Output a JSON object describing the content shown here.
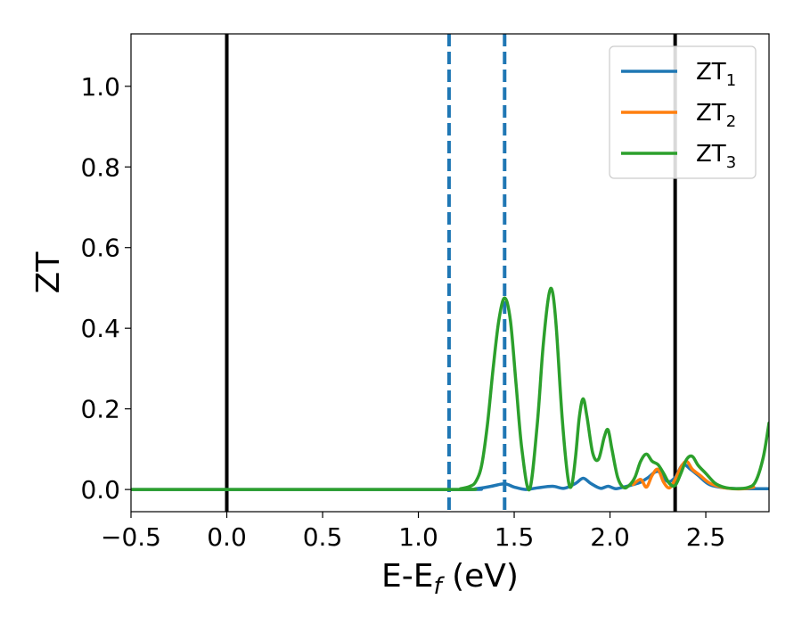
{
  "chart_data": {
    "type": "line",
    "xlabel_main": "E-E",
    "xlabel_sub": "f",
    "xlabel_unit": " (eV)",
    "ylabel": "ZT",
    "xlim": [
      -0.5,
      2.83
    ],
    "ylim": [
      -0.055,
      1.13
    ],
    "xticks": [
      -0.5,
      0.0,
      0.5,
      1.0,
      1.5,
      2.0,
      2.5
    ],
    "xtick_labels": [
      "−0.5",
      "0.0",
      "0.5",
      "1.0",
      "1.5",
      "2.0",
      "2.5"
    ],
    "yticks": [
      0.0,
      0.2,
      0.4,
      0.6,
      0.8,
      1.0
    ],
    "ytick_labels": [
      "0.0",
      "0.2",
      "0.4",
      "0.6",
      "0.8",
      "1.0"
    ],
    "grid": false,
    "legend_position": "top-right",
    "vlines_solid": [
      0.0,
      2.34
    ],
    "vlines_dashed": [
      1.16,
      1.45
    ],
    "colors": {
      "ZT1": "#1f77b4",
      "ZT2": "#ff7f0e",
      "ZT3": "#2ca02c",
      "solid_vline": "#000000",
      "dashed_vline": "#1f77b4"
    },
    "series": [
      {
        "name": "ZT",
        "sub": "1",
        "color_key": "ZT1",
        "x": [
          -0.5,
          1.16,
          1.3,
          1.38,
          1.45,
          1.5,
          1.56,
          1.62,
          1.7,
          1.76,
          1.82,
          1.86,
          1.9,
          1.95,
          1.99,
          2.03,
          2.08,
          2.12,
          2.16,
          2.2,
          2.25,
          2.3,
          2.34,
          2.38,
          2.42,
          2.46,
          2.52,
          2.6,
          2.7,
          2.83
        ],
        "y": [
          0.0,
          0.0,
          0.002,
          0.008,
          0.014,
          0.006,
          0.0,
          0.004,
          0.008,
          0.003,
          0.015,
          0.028,
          0.015,
          0.003,
          0.008,
          0.002,
          0.007,
          0.012,
          0.018,
          0.03,
          0.045,
          0.02,
          0.03,
          0.062,
          0.05,
          0.035,
          0.012,
          0.004,
          0.002,
          0.002
        ]
      },
      {
        "name": "ZT",
        "sub": "2",
        "color_key": "ZT2",
        "x": [
          2.12,
          2.16,
          2.19,
          2.22,
          2.25,
          2.28,
          2.31,
          2.34,
          2.37,
          2.4,
          2.43,
          2.47,
          2.52,
          2.58,
          2.64,
          2.7,
          2.75
        ],
        "y": [
          0.012,
          0.025,
          0.006,
          0.035,
          0.05,
          0.018,
          0.004,
          0.025,
          0.055,
          0.07,
          0.05,
          0.035,
          0.016,
          0.006,
          0.002,
          0.002,
          0.006
        ]
      },
      {
        "name": "ZT",
        "sub": "3",
        "color_key": "ZT3",
        "x": [
          -0.5,
          1.16,
          1.22,
          1.27,
          1.3,
          1.33,
          1.36,
          1.39,
          1.42,
          1.45,
          1.48,
          1.51,
          1.54,
          1.58,
          1.62,
          1.65,
          1.68,
          1.7,
          1.72,
          1.75,
          1.78,
          1.8,
          1.82,
          1.84,
          1.86,
          1.88,
          1.91,
          1.94,
          1.97,
          1.99,
          2.01,
          2.04,
          2.07,
          2.1,
          2.13,
          2.16,
          2.19,
          2.22,
          2.25,
          2.28,
          2.31,
          2.34,
          2.37,
          2.4,
          2.43,
          2.46,
          2.5,
          2.55,
          2.6,
          2.66,
          2.72,
          2.76,
          2.8,
          2.83
        ],
        "y": [
          0.0,
          0.0,
          0.002,
          0.008,
          0.02,
          0.06,
          0.16,
          0.3,
          0.42,
          0.475,
          0.42,
          0.26,
          0.1,
          0.0,
          0.16,
          0.35,
          0.48,
          0.49,
          0.4,
          0.18,
          0.03,
          0.01,
          0.08,
          0.18,
          0.225,
          0.18,
          0.09,
          0.075,
          0.13,
          0.148,
          0.1,
          0.03,
          0.005,
          0.01,
          0.03,
          0.07,
          0.088,
          0.07,
          0.062,
          0.04,
          0.015,
          0.01,
          0.04,
          0.075,
          0.082,
          0.06,
          0.04,
          0.015,
          0.005,
          0.002,
          0.005,
          0.02,
          0.08,
          0.165
        ]
      }
    ]
  }
}
